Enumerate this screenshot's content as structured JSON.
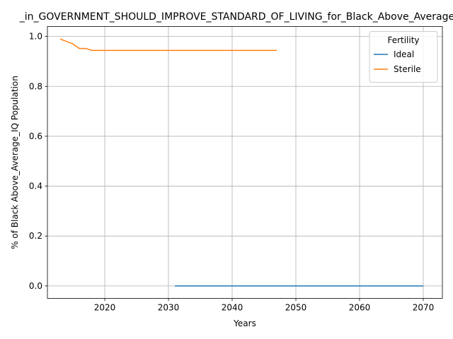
{
  "chart_data": {
    "type": "line",
    "title": "_in_GOVERNMENT_SHOULD_IMPROVE_STANDARD_OF_LIVING_for_Black_Above_Average_IQ",
    "xlabel": "Years",
    "ylabel": "% of Black Above_Average_IQ Population",
    "xlim": [
      2011,
      2073
    ],
    "ylim": [
      -0.05,
      1.04
    ],
    "xticks": [
      2020,
      2030,
      2040,
      2050,
      2060,
      2070
    ],
    "yticks": [
      0.0,
      0.2,
      0.4,
      0.6,
      0.8,
      1.0
    ],
    "xtick_labels": [
      "2020",
      "2030",
      "2040",
      "2050",
      "2060",
      "2070"
    ],
    "ytick_labels": [
      "0.0",
      "0.2",
      "0.4",
      "0.6",
      "0.8",
      "1.0"
    ],
    "grid": true,
    "legend": {
      "title": "Fertility",
      "placement": "top-right"
    },
    "series": [
      {
        "name": "Ideal",
        "color": "#1f77b4",
        "x": [
          2031,
          2035,
          2040,
          2045,
          2050,
          2055,
          2060,
          2065,
          2070
        ],
        "y": [
          0.0,
          0.0,
          0.0,
          0.0,
          0.0,
          0.0,
          0.0,
          0.0,
          0.0
        ]
      },
      {
        "name": "Sterile",
        "color": "#ff7f0e",
        "x": [
          2013,
          2014,
          2015,
          2016,
          2017,
          2018,
          2020,
          2025,
          2030,
          2035,
          2040,
          2045,
          2047
        ],
        "y": [
          0.99,
          0.98,
          0.97,
          0.952,
          0.952,
          0.944,
          0.944,
          0.944,
          0.944,
          0.944,
          0.944,
          0.944,
          0.944
        ]
      }
    ]
  }
}
